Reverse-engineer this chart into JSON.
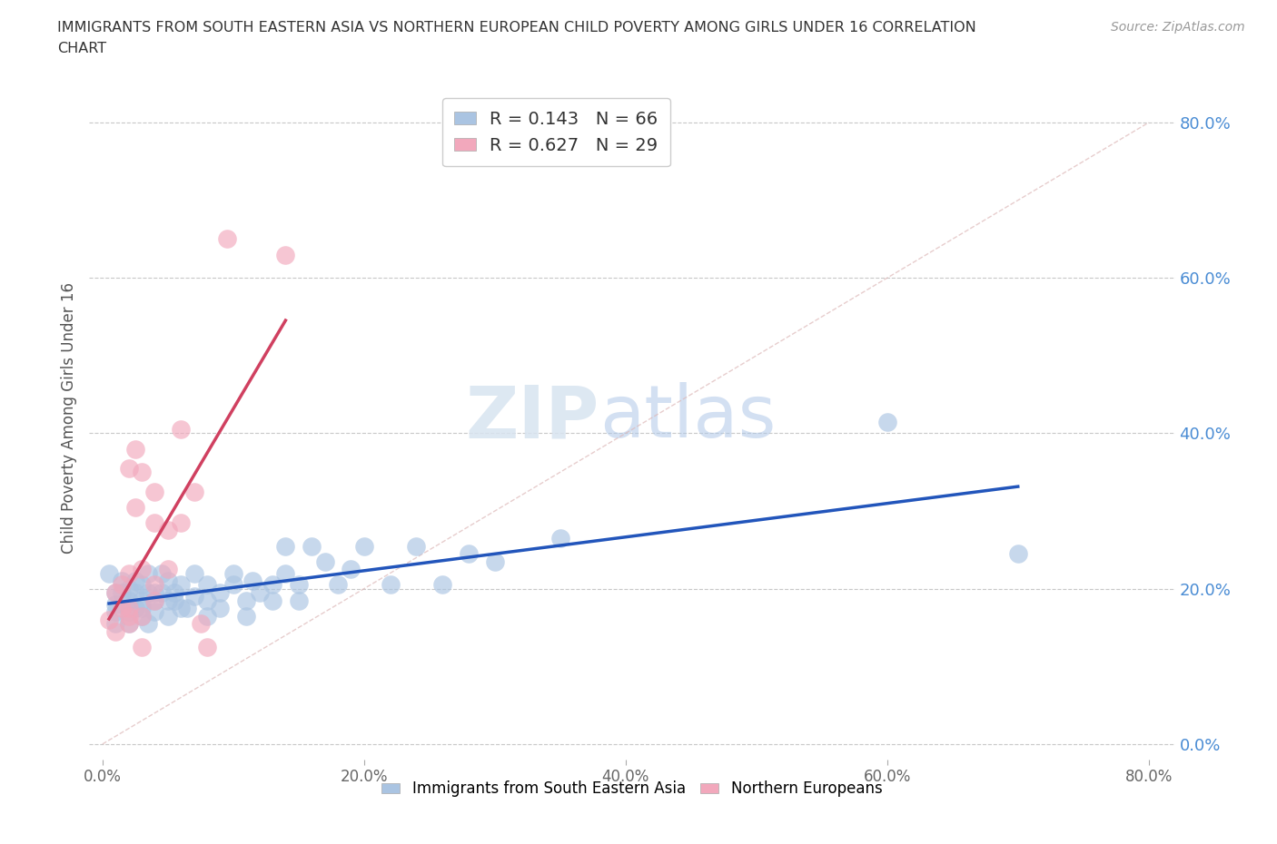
{
  "title_line1": "IMMIGRANTS FROM SOUTH EASTERN ASIA VS NORTHERN EUROPEAN CHILD POVERTY AMONG GIRLS UNDER 16 CORRELATION",
  "title_line2": "CHART",
  "source": "Source: ZipAtlas.com",
  "ylabel": "Child Poverty Among Girls Under 16",
  "xlabel_blue": "Immigrants from South Eastern Asia",
  "xlabel_pink": "Northern Europeans",
  "xlim": [
    -0.01,
    0.82
  ],
  "ylim": [
    -0.02,
    0.86
  ],
  "y_ticks": [
    0.0,
    0.2,
    0.4,
    0.6,
    0.8
  ],
  "x_ticks": [
    0.0,
    0.2,
    0.4,
    0.6,
    0.8
  ],
  "R_blue": 0.143,
  "N_blue": 66,
  "R_pink": 0.627,
  "N_pink": 29,
  "blue_color": "#aac4e2",
  "pink_color": "#f2a8bc",
  "blue_line_color": "#2255bb",
  "pink_line_color": "#d04060",
  "diag_color": "#ddb8b8",
  "blue_scatter": [
    [
      0.005,
      0.22
    ],
    [
      0.01,
      0.18
    ],
    [
      0.01,
      0.195
    ],
    [
      0.01,
      0.17
    ],
    [
      0.01,
      0.155
    ],
    [
      0.015,
      0.21
    ],
    [
      0.015,
      0.195
    ],
    [
      0.02,
      0.17
    ],
    [
      0.02,
      0.2
    ],
    [
      0.02,
      0.185
    ],
    [
      0.02,
      0.155
    ],
    [
      0.025,
      0.195
    ],
    [
      0.025,
      0.175
    ],
    [
      0.025,
      0.21
    ],
    [
      0.03,
      0.205
    ],
    [
      0.03,
      0.185
    ],
    [
      0.03,
      0.175
    ],
    [
      0.03,
      0.165
    ],
    [
      0.035,
      0.195
    ],
    [
      0.035,
      0.22
    ],
    [
      0.035,
      0.155
    ],
    [
      0.04,
      0.185
    ],
    [
      0.04,
      0.17
    ],
    [
      0.04,
      0.195
    ],
    [
      0.045,
      0.22
    ],
    [
      0.045,
      0.195
    ],
    [
      0.05,
      0.185
    ],
    [
      0.05,
      0.165
    ],
    [
      0.05,
      0.21
    ],
    [
      0.055,
      0.195
    ],
    [
      0.055,
      0.185
    ],
    [
      0.06,
      0.205
    ],
    [
      0.06,
      0.175
    ],
    [
      0.065,
      0.175
    ],
    [
      0.07,
      0.19
    ],
    [
      0.07,
      0.22
    ],
    [
      0.08,
      0.185
    ],
    [
      0.08,
      0.165
    ],
    [
      0.08,
      0.205
    ],
    [
      0.09,
      0.195
    ],
    [
      0.09,
      0.175
    ],
    [
      0.1,
      0.22
    ],
    [
      0.1,
      0.205
    ],
    [
      0.11,
      0.185
    ],
    [
      0.11,
      0.165
    ],
    [
      0.115,
      0.21
    ],
    [
      0.12,
      0.195
    ],
    [
      0.13,
      0.205
    ],
    [
      0.13,
      0.185
    ],
    [
      0.14,
      0.255
    ],
    [
      0.14,
      0.22
    ],
    [
      0.15,
      0.205
    ],
    [
      0.15,
      0.185
    ],
    [
      0.16,
      0.255
    ],
    [
      0.17,
      0.235
    ],
    [
      0.18,
      0.205
    ],
    [
      0.19,
      0.225
    ],
    [
      0.2,
      0.255
    ],
    [
      0.22,
      0.205
    ],
    [
      0.24,
      0.255
    ],
    [
      0.26,
      0.205
    ],
    [
      0.28,
      0.245
    ],
    [
      0.3,
      0.235
    ],
    [
      0.35,
      0.265
    ],
    [
      0.6,
      0.415
    ],
    [
      0.7,
      0.245
    ]
  ],
  "pink_scatter": [
    [
      0.005,
      0.16
    ],
    [
      0.01,
      0.195
    ],
    [
      0.01,
      0.145
    ],
    [
      0.015,
      0.175
    ],
    [
      0.015,
      0.205
    ],
    [
      0.02,
      0.155
    ],
    [
      0.02,
      0.175
    ],
    [
      0.02,
      0.22
    ],
    [
      0.02,
      0.355
    ],
    [
      0.02,
      0.165
    ],
    [
      0.025,
      0.305
    ],
    [
      0.025,
      0.38
    ],
    [
      0.03,
      0.225
    ],
    [
      0.03,
      0.125
    ],
    [
      0.03,
      0.165
    ],
    [
      0.03,
      0.35
    ],
    [
      0.04,
      0.285
    ],
    [
      0.04,
      0.185
    ],
    [
      0.04,
      0.325
    ],
    [
      0.04,
      0.205
    ],
    [
      0.05,
      0.275
    ],
    [
      0.05,
      0.225
    ],
    [
      0.06,
      0.405
    ],
    [
      0.06,
      0.285
    ],
    [
      0.07,
      0.325
    ],
    [
      0.075,
      0.155
    ],
    [
      0.08,
      0.125
    ],
    [
      0.095,
      0.65
    ],
    [
      0.14,
      0.63
    ]
  ],
  "watermark_zip": "ZIP",
  "watermark_atlas": "atlas",
  "background_color": "#ffffff",
  "grid_color": "#c8c8c8"
}
